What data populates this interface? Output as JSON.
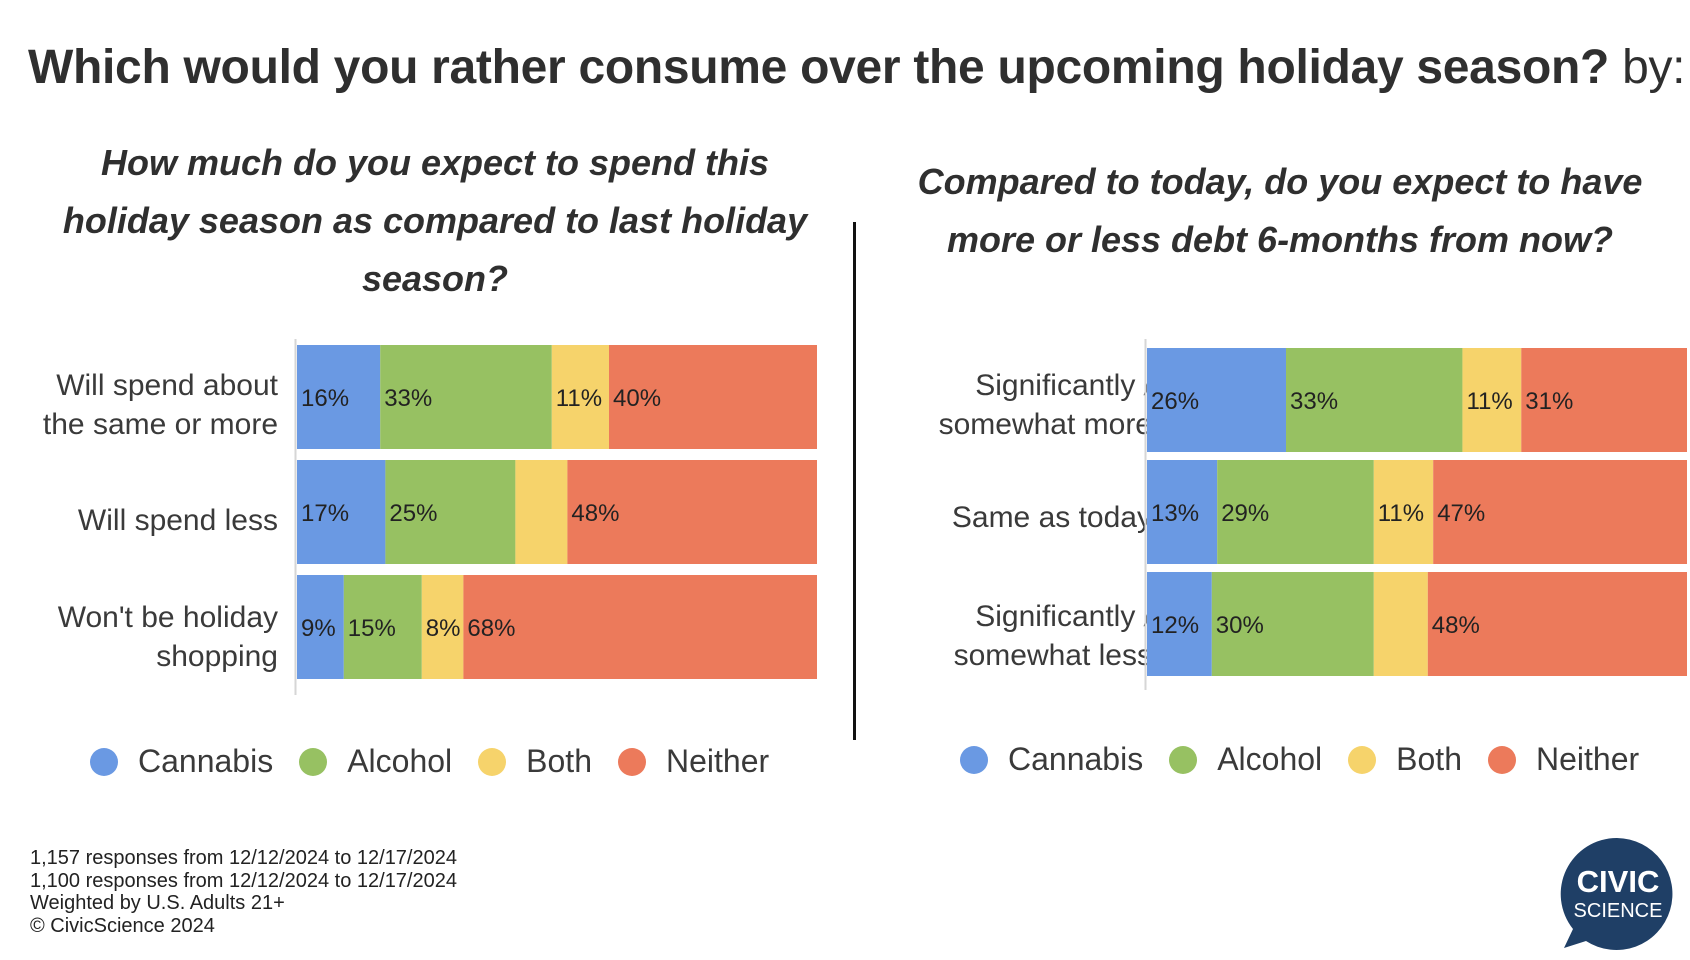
{
  "title": "Which would you rather consume over the upcoming holiday season?",
  "title_suffix": "by:",
  "colors": {
    "Cannabis": "#6a99e3",
    "Alcohol": "#97c162",
    "Both": "#f6d36b",
    "Neither": "#ec7a5b"
  },
  "chart_data": [
    {
      "type": "bar",
      "orientation": "horizontal",
      "stacked": true,
      "title": "How much do you expect to spend this holiday season as compared to last holiday season?",
      "categories": [
        "Will spend about the same or more",
        "Will spend less",
        "Won't be holiday shopping"
      ],
      "series": [
        {
          "name": "Cannabis",
          "values": [
            16,
            17,
            9
          ],
          "labels": [
            "16%",
            "17%",
            "9%"
          ]
        },
        {
          "name": "Alcohol",
          "values": [
            33,
            25,
            15
          ],
          "labels": [
            "33%",
            "25%",
            "15%"
          ]
        },
        {
          "name": "Both",
          "values": [
            11,
            10,
            8
          ],
          "labels": [
            "11%",
            "",
            "8%"
          ]
        },
        {
          "name": "Neither",
          "values": [
            40,
            48,
            68
          ],
          "labels": [
            "40%",
            "48%",
            "68%"
          ]
        }
      ],
      "xlim": [
        0,
        100
      ],
      "legend": "bottom"
    },
    {
      "type": "bar",
      "orientation": "horizontal",
      "stacked": true,
      "title": "Compared to today, do you expect to have more or less debt 6-months from now?",
      "categories": [
        "Significantly / somewhat more",
        "Same as today",
        "Significantly / somewhat less"
      ],
      "series": [
        {
          "name": "Cannabis",
          "values": [
            26,
            13,
            12
          ],
          "labels": [
            "26%",
            "13%",
            "12%"
          ]
        },
        {
          "name": "Alcohol",
          "values": [
            33,
            29,
            30
          ],
          "labels": [
            "33%",
            "29%",
            "30%"
          ]
        },
        {
          "name": "Both",
          "values": [
            11,
            11,
            10
          ],
          "labels": [
            "11%",
            "11%",
            ""
          ]
        },
        {
          "name": "Neither",
          "values": [
            31,
            47,
            48
          ],
          "labels": [
            "31%",
            "47%",
            "48%"
          ]
        }
      ],
      "xlim": [
        0,
        100
      ],
      "legend": "bottom"
    }
  ],
  "footnotes": [
    "1,157 responses from 12/12/2024 to 12/17/2024",
    "1,100 responses from 12/12/2024 to 12/17/2024",
    "Weighted by U.S. Adults 21+",
    "© CivicScience 2024"
  ],
  "logo": {
    "line1": "CIVIC",
    "line2": "SCIENCE"
  }
}
